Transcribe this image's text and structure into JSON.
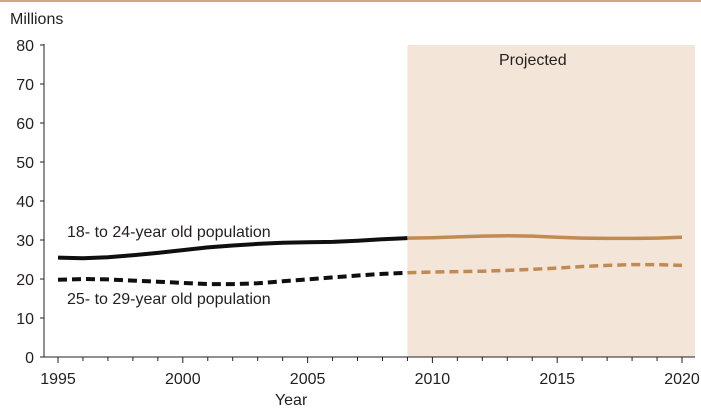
{
  "chart_data": {
    "type": "line",
    "yunit": "Millions",
    "xlabel": "Year",
    "ylabel": "",
    "xlim": [
      1995,
      2020
    ],
    "ylim": [
      0,
      80
    ],
    "xticks": [
      1995,
      2000,
      2005,
      2010,
      2015,
      2020
    ],
    "yticks": [
      0,
      10,
      20,
      30,
      40,
      50,
      60,
      70,
      80
    ],
    "grid": false,
    "projection": {
      "label": "Projected",
      "start": 2009,
      "end": 2020
    },
    "series": [
      {
        "name": "18- to 24-year old population",
        "style": "solid",
        "x": [
          1995,
          1996,
          1997,
          1998,
          1999,
          2000,
          2001,
          2002,
          2003,
          2004,
          2005,
          2006,
          2007,
          2008,
          2009,
          2010,
          2011,
          2012,
          2013,
          2014,
          2015,
          2016,
          2017,
          2018,
          2019,
          2020
        ],
        "values": [
          25.5,
          25.3,
          25.6,
          26.1,
          26.7,
          27.4,
          28.1,
          28.6,
          29.0,
          29.3,
          29.4,
          29.5,
          29.8,
          30.2,
          30.5,
          30.6,
          30.8,
          31.0,
          31.1,
          31.0,
          30.7,
          30.5,
          30.4,
          30.4,
          30.5,
          30.7
        ]
      },
      {
        "name": "25- to 29-year old population",
        "style": "dashed",
        "x": [
          1995,
          1996,
          1997,
          1998,
          1999,
          2000,
          2001,
          2002,
          2003,
          2004,
          2005,
          2006,
          2007,
          2008,
          2009,
          2010,
          2011,
          2012,
          2013,
          2014,
          2015,
          2016,
          2017,
          2018,
          2019,
          2020
        ],
        "values": [
          19.8,
          20.0,
          19.9,
          19.6,
          19.3,
          19.0,
          18.7,
          18.7,
          18.9,
          19.4,
          19.9,
          20.4,
          20.9,
          21.3,
          21.6,
          21.8,
          21.9,
          22.0,
          22.2,
          22.5,
          22.8,
          23.2,
          23.5,
          23.7,
          23.7,
          23.5
        ]
      }
    ],
    "colors": {
      "historical": "#0f0f0f",
      "projected": "#c18a55",
      "projection_band": "#f4e5d9",
      "top_rule": "#d4a67a",
      "axis": "#231f20"
    }
  }
}
